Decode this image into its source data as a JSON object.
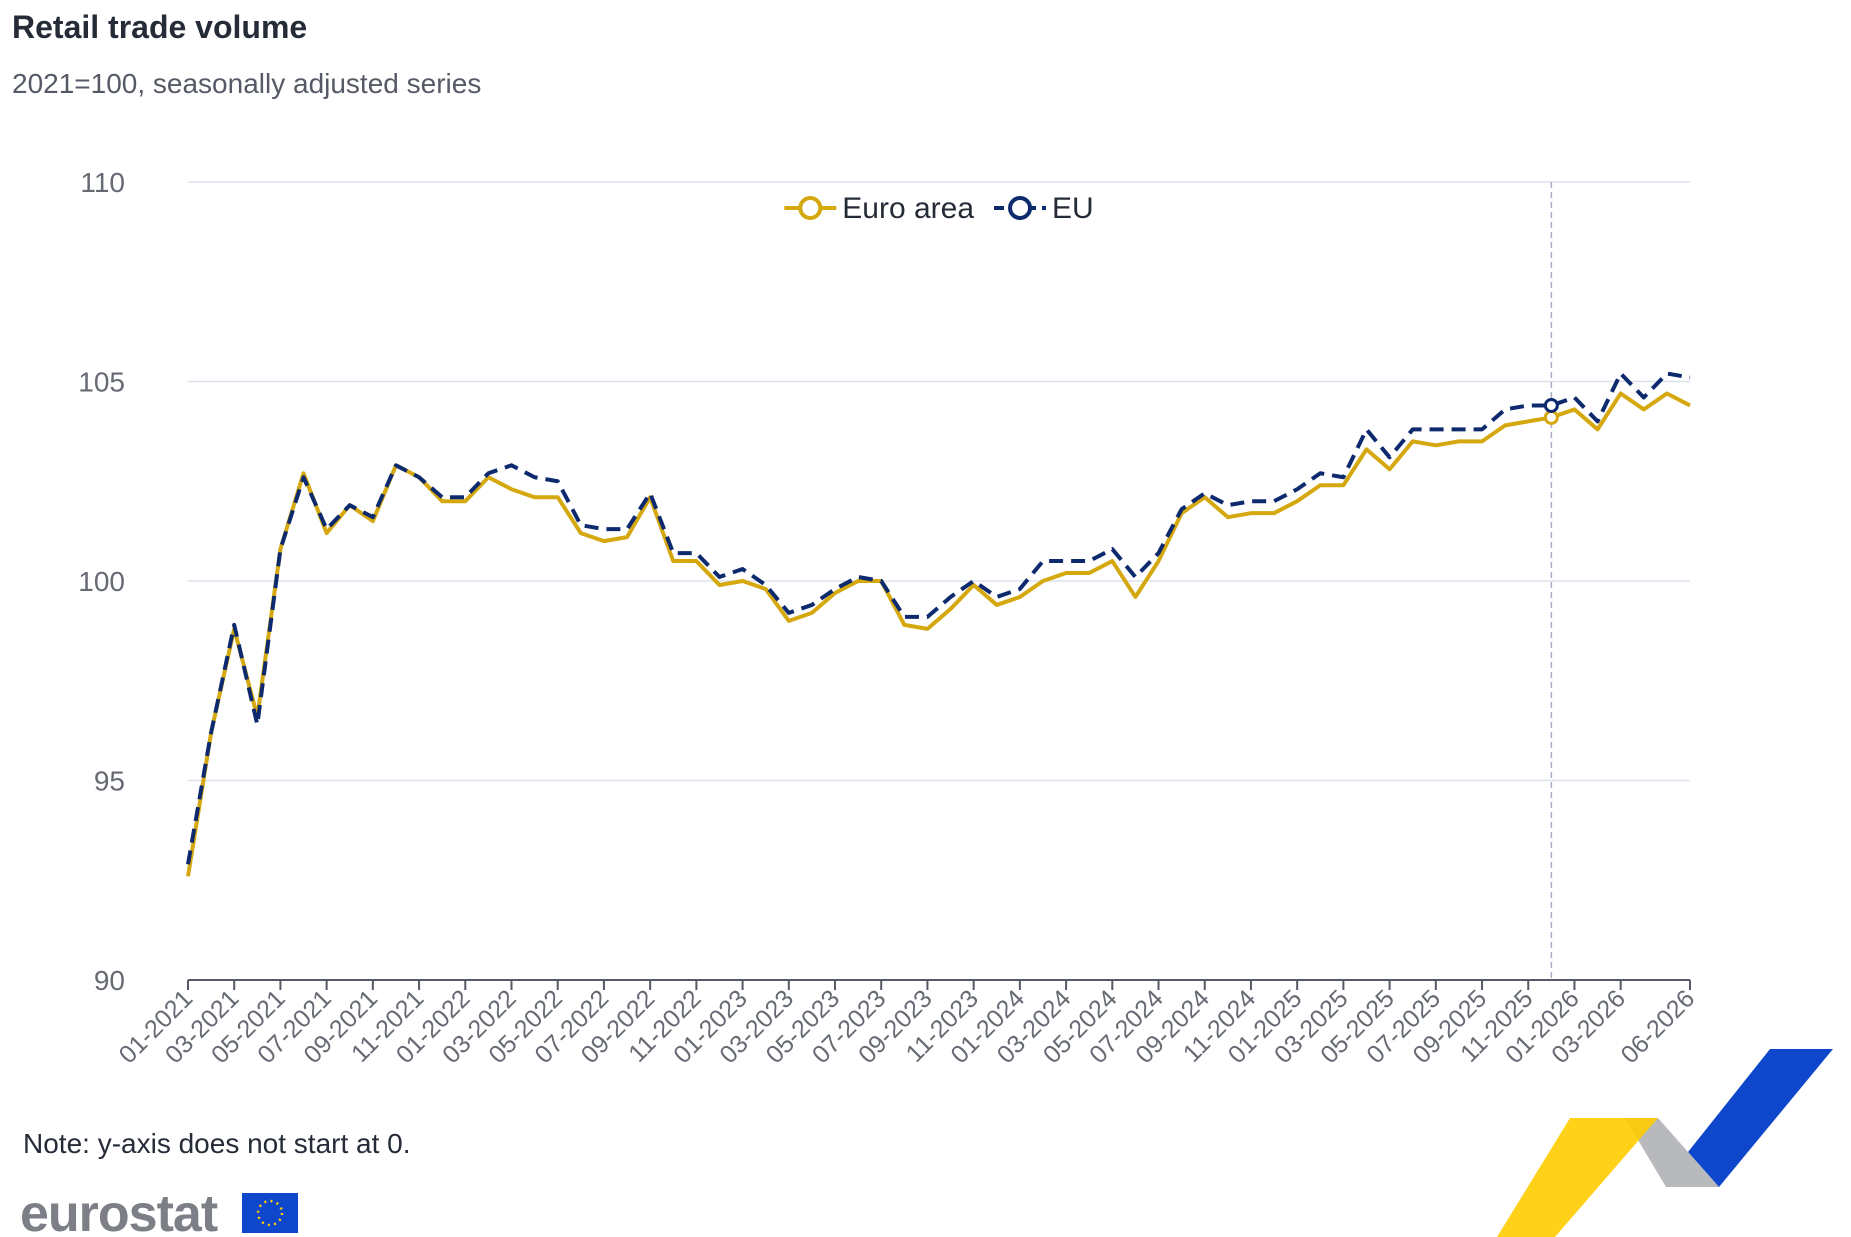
{
  "chart_data": {
    "type": "line",
    "title": "Retail trade volume",
    "subtitle": "2021=100, seasonally adjusted series",
    "note": "Note: y-axis does not start at 0.",
    "logo": "eurostat",
    "legend": "top",
    "grid": true,
    "categories": [
      "01-2021",
      null,
      "03-2021",
      null,
      "05-2021",
      null,
      "07-2021",
      null,
      "09-2021",
      null,
      "11-2021",
      null,
      "01-2022",
      null,
      "03-2022",
      null,
      "05-2022",
      null,
      "07-2022",
      null,
      "09-2022",
      null,
      "11-2022",
      null,
      "01-2023",
      null,
      "03-2023",
      null,
      "05-2023",
      null,
      "07-2023",
      null,
      "09-2023",
      null,
      "11-2023",
      null,
      "01-2024",
      null,
      "03-2024",
      null,
      "05-2024",
      null,
      "07-2024",
      null,
      "09-2024",
      null,
      "11-2024",
      null,
      "01-2025",
      null,
      "03-2025",
      null,
      "05-2025",
      null,
      "07-2025",
      null,
      "09-2025",
      null,
      "11-2025",
      null,
      "01-2026",
      null,
      "03-2026",
      null,
      null,
      "06-2026"
    ],
    "series": [
      {
        "name": "Euro area",
        "color": "#d4a80e",
        "dash": false,
        "values": [
          92.6,
          96.2,
          98.8,
          96.6,
          100.8,
          102.7,
          101.2,
          101.9,
          101.5,
          102.9,
          102.6,
          102.0,
          102.0,
          102.6,
          102.3,
          102.1,
          102.1,
          101.2,
          101.0,
          101.1,
          102.1,
          100.5,
          100.5,
          99.9,
          100.0,
          99.8,
          99.0,
          99.2,
          99.7,
          100.0,
          100.0,
          98.9,
          98.8,
          99.3,
          99.9,
          99.4,
          99.6,
          100.0,
          100.2,
          100.2,
          100.5,
          99.6,
          100.5,
          101.7,
          102.1,
          101.6,
          101.7,
          101.7,
          102.0,
          102.4,
          102.4,
          103.3,
          102.8,
          103.5,
          103.4,
          103.5,
          103.5,
          103.9,
          104.0,
          104.1,
          104.3,
          103.8,
          104.7,
          104.3,
          104.7,
          104.4
        ]
      },
      {
        "name": "EU",
        "color": "#0e2a6e",
        "dash": true,
        "values": [
          92.9,
          96.2,
          98.9,
          96.4,
          100.8,
          102.6,
          101.3,
          101.9,
          101.6,
          102.9,
          102.6,
          102.1,
          102.1,
          102.7,
          102.9,
          102.6,
          102.5,
          101.4,
          101.3,
          101.3,
          102.2,
          100.7,
          100.7,
          100.1,
          100.3,
          99.9,
          99.2,
          99.4,
          99.8,
          100.1,
          100.0,
          99.1,
          99.1,
          99.6,
          100.0,
          99.6,
          99.8,
          100.5,
          100.5,
          100.5,
          100.8,
          100.1,
          100.7,
          101.8,
          102.2,
          101.9,
          102.0,
          102.0,
          102.3,
          102.7,
          102.6,
          103.8,
          103.1,
          103.8,
          103.8,
          103.8,
          103.8,
          104.3,
          104.4,
          104.4,
          104.6,
          104.0,
          105.2,
          104.6,
          105.2,
          105.1
        ]
      }
    ],
    "ylim": [
      90,
      110
    ],
    "yticks": [
      90,
      95,
      100,
      105,
      110
    ]
  }
}
